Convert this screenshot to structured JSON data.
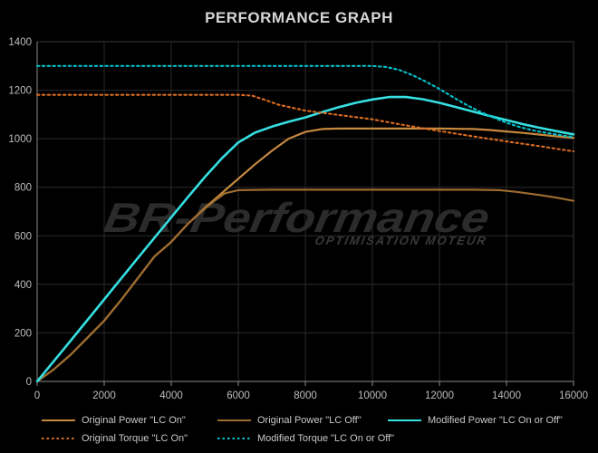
{
  "title": "PERFORMANCE GRAPH",
  "watermark": {
    "brand": "BR-Performance",
    "tagline": "OPTIMISATION MOTEUR"
  },
  "colors": {
    "background": "#000000",
    "grid": "#2a2a2a",
    "border": "#383838",
    "axis_line": "#8a8a8a",
    "axis_text": "#bdbdbd",
    "title_text": "#d6d6d6",
    "legend_text": "#c9c9c9",
    "watermark_brand": "#2b2b2b",
    "watermark_tagline": "#3a3a3a"
  },
  "chart_data": {
    "type": "line",
    "title": "PERFORMANCE GRAPH",
    "xlabel": "",
    "ylabel": "",
    "xlim": [
      0,
      16000
    ],
    "ylim": [
      0,
      1400
    ],
    "x_ticks": [
      0,
      2000,
      4000,
      6000,
      8000,
      10000,
      12000,
      14000,
      16000
    ],
    "y_ticks": [
      0,
      200,
      400,
      600,
      800,
      1000,
      1200,
      1400
    ],
    "grid": true,
    "legend_position": "bottom",
    "series": [
      {
        "id": "original-power-lc-on",
        "name": "Original Power \"LC On\"",
        "color": "#c6893f",
        "line_style": "solid",
        "line_width": 2.2,
        "points": [
          [
            0,
            0
          ],
          [
            500,
            50
          ],
          [
            1000,
            110
          ],
          [
            1500,
            180
          ],
          [
            2000,
            250
          ],
          [
            2500,
            335
          ],
          [
            3000,
            425
          ],
          [
            3500,
            515
          ],
          [
            4000,
            575
          ],
          [
            4500,
            650
          ],
          [
            5000,
            715
          ],
          [
            5500,
            775
          ],
          [
            6000,
            835
          ],
          [
            6500,
            895
          ],
          [
            7000,
            950
          ],
          [
            7500,
            1000
          ],
          [
            8000,
            1028
          ],
          [
            8500,
            1040
          ],
          [
            9000,
            1042
          ],
          [
            10000,
            1042
          ],
          [
            11000,
            1042
          ],
          [
            12000,
            1042
          ],
          [
            13000,
            1040
          ],
          [
            13500,
            1036
          ],
          [
            14000,
            1030
          ],
          [
            14500,
            1024
          ],
          [
            15000,
            1017
          ],
          [
            15500,
            1010
          ],
          [
            16000,
            1004
          ]
        ]
      },
      {
        "id": "original-power-lc-off",
        "name": "Original Power \"LC Off\"",
        "color": "#9e6c30",
        "line_style": "solid",
        "line_width": 2.2,
        "points": [
          [
            0,
            0
          ],
          [
            500,
            50
          ],
          [
            1000,
            110
          ],
          [
            1500,
            180
          ],
          [
            2000,
            250
          ],
          [
            2500,
            335
          ],
          [
            3000,
            425
          ],
          [
            3500,
            515
          ],
          [
            4000,
            575
          ],
          [
            4500,
            650
          ],
          [
            5000,
            712
          ],
          [
            5300,
            745
          ],
          [
            5600,
            775
          ],
          [
            6000,
            788
          ],
          [
            7000,
            790
          ],
          [
            8000,
            790
          ],
          [
            9000,
            790
          ],
          [
            10000,
            790
          ],
          [
            11000,
            790
          ],
          [
            12000,
            790
          ],
          [
            13000,
            790
          ],
          [
            13800,
            788
          ],
          [
            14300,
            781
          ],
          [
            15000,
            768
          ],
          [
            15500,
            757
          ],
          [
            16000,
            744
          ]
        ]
      },
      {
        "id": "modified-power",
        "name": "Modified Power \"LC On or Off\"",
        "color": "#35dfe2",
        "line_style": "solid",
        "line_width": 2.6,
        "points": [
          [
            0,
            0
          ],
          [
            1000,
            168
          ],
          [
            2000,
            338
          ],
          [
            3000,
            508
          ],
          [
            4000,
            676
          ],
          [
            4500,
            760
          ],
          [
            5000,
            842
          ],
          [
            5500,
            918
          ],
          [
            6000,
            985
          ],
          [
            6500,
            1025
          ],
          [
            7000,
            1050
          ],
          [
            7500,
            1070
          ],
          [
            8000,
            1088
          ],
          [
            8500,
            1110
          ],
          [
            9000,
            1130
          ],
          [
            9500,
            1148
          ],
          [
            10000,
            1162
          ],
          [
            10500,
            1172
          ],
          [
            11000,
            1172
          ],
          [
            11500,
            1163
          ],
          [
            12000,
            1148
          ],
          [
            12500,
            1130
          ],
          [
            13000,
            1112
          ],
          [
            13500,
            1094
          ],
          [
            14000,
            1077
          ],
          [
            14500,
            1060
          ],
          [
            15000,
            1045
          ],
          [
            15500,
            1031
          ],
          [
            16000,
            1018
          ]
        ]
      },
      {
        "id": "original-torque",
        "name": "Original Torque \"LC On\"",
        "color": "#dc6c20",
        "line_style": "dotted",
        "line_width": 2.1,
        "points": [
          [
            0,
            1181
          ],
          [
            2000,
            1181
          ],
          [
            4000,
            1181
          ],
          [
            5000,
            1181
          ],
          [
            6000,
            1181
          ],
          [
            6400,
            1178
          ],
          [
            6800,
            1160
          ],
          [
            7200,
            1140
          ],
          [
            8000,
            1116
          ],
          [
            9000,
            1098
          ],
          [
            10000,
            1080
          ],
          [
            11000,
            1055
          ],
          [
            12000,
            1032
          ],
          [
            13000,
            1010
          ],
          [
            14000,
            989
          ],
          [
            15000,
            969
          ],
          [
            16000,
            948
          ]
        ]
      },
      {
        "id": "modified-torque",
        "name": "Modified Torque \"LC On or Off\"",
        "color": "#00c2cc",
        "line_style": "dotted",
        "line_width": 2.1,
        "points": [
          [
            0,
            1300
          ],
          [
            2000,
            1300
          ],
          [
            4000,
            1300
          ],
          [
            6000,
            1300
          ],
          [
            8000,
            1300
          ],
          [
            10000,
            1300
          ],
          [
            10400,
            1296
          ],
          [
            10800,
            1284
          ],
          [
            11200,
            1262
          ],
          [
            11600,
            1235
          ],
          [
            12000,
            1205
          ],
          [
            12400,
            1172
          ],
          [
            12800,
            1140
          ],
          [
            13200,
            1112
          ],
          [
            13600,
            1088
          ],
          [
            14000,
            1066
          ],
          [
            14400,
            1048
          ],
          [
            14800,
            1034
          ],
          [
            15200,
            1024
          ],
          [
            15600,
            1015
          ],
          [
            16000,
            1007
          ]
        ]
      }
    ]
  }
}
